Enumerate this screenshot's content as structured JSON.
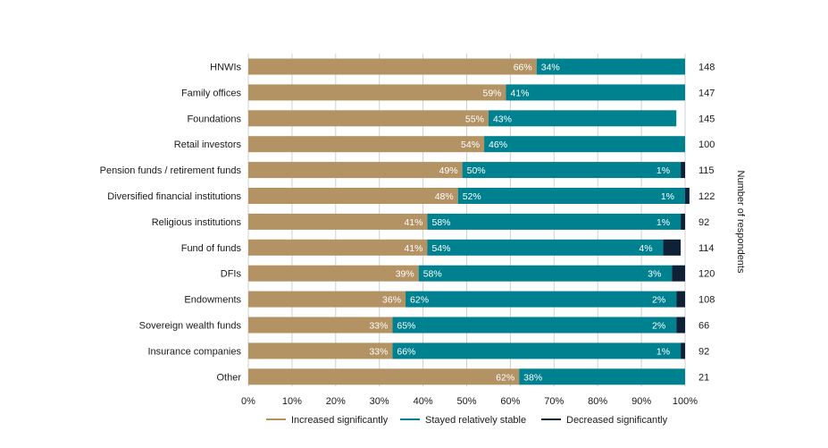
{
  "chart_data": {
    "type": "bar",
    "orientation": "horizontal",
    "stacked": true,
    "categories": [
      "HNWIs",
      "Family offices",
      "Foundations",
      "Retail investors",
      "Pension funds / retirement funds",
      "Diversified financial institutions",
      "Religious institutions",
      "Fund of funds",
      "DFIs",
      "Endowments",
      "Sovereign wealth funds",
      "Insurance companies",
      "Other"
    ],
    "series": [
      {
        "name": "Increased significantly",
        "color": "#b39264",
        "values": [
          66,
          59,
          55,
          54,
          49,
          48,
          41,
          41,
          39,
          36,
          33,
          33,
          62
        ]
      },
      {
        "name": "Stayed relatively stable",
        "color": "#00818f",
        "values": [
          34,
          41,
          43,
          46,
          50,
          52,
          58,
          54,
          58,
          62,
          65,
          66,
          38
        ]
      },
      {
        "name": "Decreased significantly",
        "color": "#0f2137",
        "values": [
          0,
          0,
          0,
          0,
          1,
          1,
          1,
          4,
          3,
          2,
          2,
          1,
          0
        ]
      }
    ],
    "respondents": [
      148,
      147,
      145,
      100,
      115,
      122,
      92,
      114,
      120,
      108,
      66,
      92,
      21
    ],
    "respondents_label": "Number of respondents",
    "xlim": [
      0,
      100
    ],
    "xticks": [
      "0%",
      "10%",
      "20%",
      "30%",
      "40%",
      "50%",
      "60%",
      "70%",
      "80%",
      "90%",
      "100%"
    ],
    "grid": true,
    "legend_position": "bottom"
  }
}
